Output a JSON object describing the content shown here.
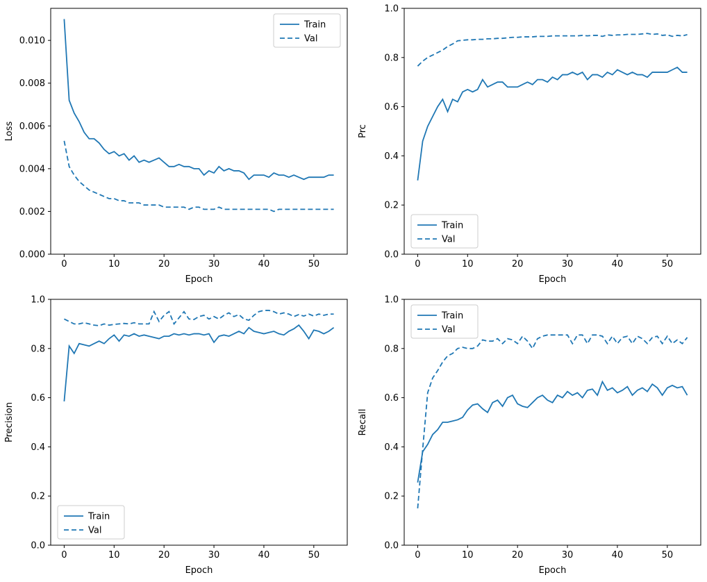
{
  "figure": {
    "background": "#ffffff",
    "line_color": "#1f77b4"
  },
  "epochs": [
    0,
    1,
    2,
    3,
    4,
    5,
    6,
    7,
    8,
    9,
    10,
    11,
    12,
    13,
    14,
    15,
    16,
    17,
    18,
    19,
    20,
    21,
    22,
    23,
    24,
    25,
    26,
    27,
    28,
    29,
    30,
    31,
    32,
    33,
    34,
    35,
    36,
    37,
    38,
    39,
    40,
    41,
    42,
    43,
    44,
    45,
    46,
    47,
    48,
    49,
    50,
    51,
    52,
    53,
    54
  ],
  "chart_data": [
    {
      "type": "line",
      "title": "",
      "xlabel": "Epoch",
      "ylabel": "Loss",
      "xlim": [
        -2.7,
        56.7
      ],
      "ylim": [
        0,
        0.0115
      ],
      "xticks": [
        0,
        10,
        20,
        30,
        40,
        50
      ],
      "yticks": [
        0.0,
        0.002,
        0.004,
        0.006,
        0.008,
        0.01
      ],
      "ytick_decimals": 3,
      "grid": false,
      "legend": {
        "position": "upper-right",
        "entries": [
          "Train",
          "Val"
        ]
      },
      "series": [
        {
          "name": "Train",
          "style": "solid",
          "color": "#1f77b4",
          "values": [
            0.011,
            0.0072,
            0.0066,
            0.0062,
            0.0057,
            0.0054,
            0.0054,
            0.0052,
            0.0049,
            0.0047,
            0.0048,
            0.0046,
            0.0047,
            0.0044,
            0.0046,
            0.0043,
            0.0044,
            0.0043,
            0.0044,
            0.0045,
            0.0043,
            0.0041,
            0.0041,
            0.0042,
            0.0041,
            0.0041,
            0.004,
            0.004,
            0.0037,
            0.0039,
            0.0038,
            0.0041,
            0.0039,
            0.004,
            0.0039,
            0.0039,
            0.0038,
            0.0035,
            0.0037,
            0.0037,
            0.0037,
            0.0036,
            0.0038,
            0.0037,
            0.0037,
            0.0036,
            0.0037,
            0.0036,
            0.0035,
            0.0036,
            0.0036,
            0.0036,
            0.0036,
            0.0037,
            0.0037
          ]
        },
        {
          "name": "Val",
          "style": "dashed",
          "color": "#1f77b4",
          "values": [
            0.0053,
            0.0041,
            0.0037,
            0.0034,
            0.0032,
            0.003,
            0.0029,
            0.0028,
            0.0027,
            0.0026,
            0.0026,
            0.0025,
            0.0025,
            0.0024,
            0.0024,
            0.0024,
            0.0023,
            0.0023,
            0.0023,
            0.0023,
            0.0022,
            0.0022,
            0.0022,
            0.0022,
            0.0022,
            0.0021,
            0.0022,
            0.0022,
            0.0021,
            0.0021,
            0.0021,
            0.0022,
            0.0021,
            0.0021,
            0.0021,
            0.0021,
            0.0021,
            0.0021,
            0.0021,
            0.0021,
            0.0021,
            0.0021,
            0.002,
            0.0021,
            0.0021,
            0.0021,
            0.0021,
            0.0021,
            0.0021,
            0.0021,
            0.0021,
            0.0021,
            0.0021,
            0.0021,
            0.0021
          ]
        }
      ]
    },
    {
      "type": "line",
      "title": "",
      "xlabel": "Epoch",
      "ylabel": "Prc",
      "xlim": [
        -2.7,
        56.7
      ],
      "ylim": [
        0,
        1.0
      ],
      "xticks": [
        0,
        10,
        20,
        30,
        40,
        50
      ],
      "yticks": [
        0.0,
        0.2,
        0.4,
        0.6,
        0.8,
        1.0
      ],
      "ytick_decimals": 1,
      "grid": false,
      "legend": {
        "position": "lower-left",
        "entries": [
          "Train",
          "Val"
        ]
      },
      "series": [
        {
          "name": "Train",
          "style": "solid",
          "color": "#1f77b4",
          "values": [
            0.3,
            0.46,
            0.52,
            0.56,
            0.6,
            0.63,
            0.58,
            0.63,
            0.62,
            0.66,
            0.67,
            0.66,
            0.67,
            0.71,
            0.68,
            0.69,
            0.7,
            0.7,
            0.68,
            0.68,
            0.68,
            0.69,
            0.7,
            0.69,
            0.71,
            0.71,
            0.7,
            0.72,
            0.71,
            0.73,
            0.73,
            0.74,
            0.73,
            0.74,
            0.71,
            0.73,
            0.73,
            0.72,
            0.74,
            0.73,
            0.75,
            0.74,
            0.73,
            0.74,
            0.73,
            0.73,
            0.72,
            0.74,
            0.74,
            0.74,
            0.74,
            0.75,
            0.76,
            0.74,
            0.74
          ]
        },
        {
          "name": "Val",
          "style": "dashed",
          "color": "#1f77b4",
          "values": [
            0.765,
            0.785,
            0.8,
            0.81,
            0.82,
            0.83,
            0.845,
            0.855,
            0.868,
            0.87,
            0.872,
            0.872,
            0.874,
            0.874,
            0.876,
            0.876,
            0.878,
            0.878,
            0.88,
            0.882,
            0.882,
            0.884,
            0.884,
            0.884,
            0.886,
            0.886,
            0.886,
            0.888,
            0.888,
            0.888,
            0.888,
            0.888,
            0.888,
            0.89,
            0.888,
            0.89,
            0.89,
            0.886,
            0.892,
            0.89,
            0.892,
            0.892,
            0.894,
            0.894,
            0.894,
            0.896,
            0.898,
            0.894,
            0.896,
            0.89,
            0.892,
            0.886,
            0.89,
            0.888,
            0.893
          ]
        }
      ]
    },
    {
      "type": "line",
      "title": "",
      "xlabel": "Epoch",
      "ylabel": "Precision",
      "xlim": [
        -2.7,
        56.7
      ],
      "ylim": [
        0,
        1.0
      ],
      "xticks": [
        0,
        10,
        20,
        30,
        40,
        50
      ],
      "yticks": [
        0.0,
        0.2,
        0.4,
        0.6,
        0.8,
        1.0
      ],
      "ytick_decimals": 1,
      "grid": false,
      "legend": {
        "position": "lower-left",
        "entries": [
          "Train",
          "Val"
        ]
      },
      "series": [
        {
          "name": "Train",
          "style": "solid",
          "color": "#1f77b4",
          "values": [
            0.585,
            0.81,
            0.78,
            0.82,
            0.815,
            0.81,
            0.82,
            0.83,
            0.82,
            0.84,
            0.855,
            0.83,
            0.855,
            0.85,
            0.86,
            0.85,
            0.855,
            0.85,
            0.845,
            0.84,
            0.85,
            0.85,
            0.86,
            0.855,
            0.86,
            0.855,
            0.86,
            0.86,
            0.855,
            0.86,
            0.825,
            0.85,
            0.855,
            0.85,
            0.86,
            0.87,
            0.86,
            0.885,
            0.87,
            0.865,
            0.86,
            0.865,
            0.87,
            0.86,
            0.855,
            0.87,
            0.88,
            0.895,
            0.87,
            0.84,
            0.875,
            0.87,
            0.86,
            0.87,
            0.885
          ]
        },
        {
          "name": "Val",
          "style": "dashed",
          "color": "#1f77b4",
          "values": [
            0.92,
            0.91,
            0.9,
            0.9,
            0.905,
            0.9,
            0.895,
            0.893,
            0.9,
            0.895,
            0.898,
            0.9,
            0.902,
            0.9,
            0.905,
            0.9,
            0.9,
            0.9,
            0.95,
            0.91,
            0.935,
            0.95,
            0.9,
            0.925,
            0.95,
            0.92,
            0.918,
            0.93,
            0.935,
            0.92,
            0.93,
            0.92,
            0.935,
            0.945,
            0.93,
            0.938,
            0.92,
            0.915,
            0.935,
            0.95,
            0.955,
            0.955,
            0.95,
            0.94,
            0.945,
            0.94,
            0.93,
            0.938,
            0.932,
            0.94,
            0.932,
            0.94,
            0.935,
            0.94,
            0.94
          ]
        }
      ]
    },
    {
      "type": "line",
      "title": "",
      "xlabel": "Epoch",
      "ylabel": "Recall",
      "xlim": [
        -2.7,
        56.7
      ],
      "ylim": [
        0,
        1.0
      ],
      "xticks": [
        0,
        10,
        20,
        30,
        40,
        50
      ],
      "yticks": [
        0.0,
        0.2,
        0.4,
        0.6,
        0.8,
        1.0
      ],
      "ytick_decimals": 1,
      "grid": false,
      "legend": {
        "position": "upper-left",
        "entries": [
          "Train",
          "Val"
        ]
      },
      "series": [
        {
          "name": "Train",
          "style": "solid",
          "color": "#1f77b4",
          "values": [
            0.255,
            0.38,
            0.41,
            0.45,
            0.47,
            0.5,
            0.5,
            0.505,
            0.51,
            0.52,
            0.55,
            0.57,
            0.575,
            0.555,
            0.54,
            0.58,
            0.59,
            0.565,
            0.6,
            0.61,
            0.575,
            0.565,
            0.56,
            0.58,
            0.6,
            0.61,
            0.59,
            0.58,
            0.61,
            0.6,
            0.625,
            0.61,
            0.62,
            0.6,
            0.63,
            0.635,
            0.61,
            0.665,
            0.63,
            0.64,
            0.62,
            0.63,
            0.645,
            0.61,
            0.63,
            0.64,
            0.625,
            0.655,
            0.64,
            0.61,
            0.64,
            0.65,
            0.64,
            0.645,
            0.61
          ]
        },
        {
          "name": "Val",
          "style": "dashed",
          "color": "#1f77b4",
          "values": [
            0.15,
            0.39,
            0.62,
            0.68,
            0.71,
            0.745,
            0.77,
            0.78,
            0.8,
            0.805,
            0.8,
            0.8,
            0.81,
            0.835,
            0.83,
            0.83,
            0.84,
            0.82,
            0.84,
            0.835,
            0.82,
            0.85,
            0.83,
            0.8,
            0.84,
            0.85,
            0.855,
            0.855,
            0.855,
            0.855,
            0.855,
            0.82,
            0.855,
            0.855,
            0.82,
            0.855,
            0.855,
            0.85,
            0.82,
            0.85,
            0.82,
            0.845,
            0.85,
            0.82,
            0.85,
            0.84,
            0.82,
            0.845,
            0.85,
            0.82,
            0.85,
            0.82,
            0.835,
            0.82,
            0.845
          ]
        }
      ]
    }
  ]
}
